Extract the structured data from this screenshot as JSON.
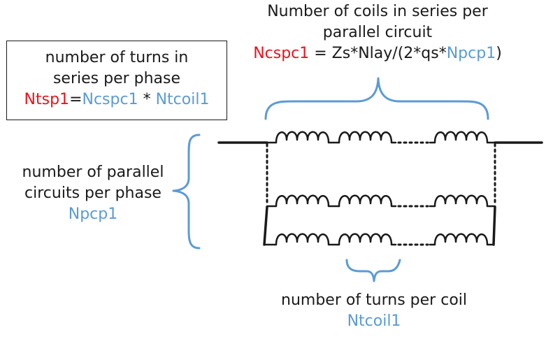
{
  "colors": {
    "red": "#e8141b",
    "blue": "#5b9bd5",
    "black": "#1a1a1a"
  },
  "series_coils": {
    "heading_line1": "Number of coils in series per",
    "heading_line2": "parallel circuit",
    "formula_var": "Ncspc1",
    "formula_mid": " = Zs*Nlay/(2*qs*",
    "formula_param": "Npcp1",
    "formula_end": ")"
  },
  "turns_per_phase": {
    "line1": "number of turns in",
    "line2": "series per phase",
    "var": "Ntsp1",
    "eq": "=",
    "term1": "Ncspc1",
    "op": " * ",
    "term2": "Ntcoil1"
  },
  "parallel_circuits": {
    "line1": "number of parallel",
    "line2": "circuits per phase",
    "var": "Npcp1"
  },
  "turns_per_coil": {
    "line1": "number of turns per coil",
    "var": "Ntcoil1"
  }
}
